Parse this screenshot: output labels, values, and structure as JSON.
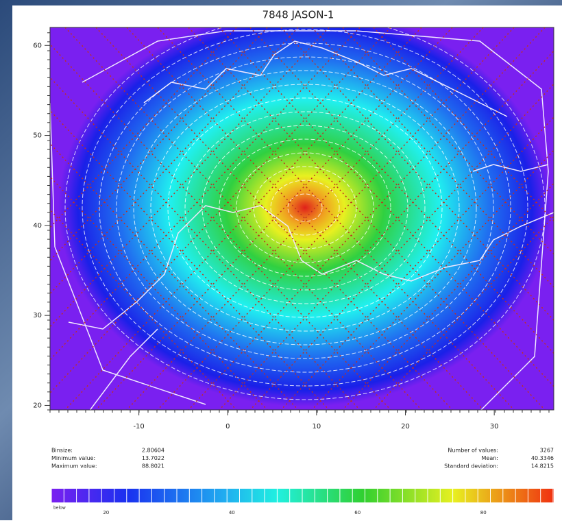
{
  "title": "7848 JASON-1",
  "map": {
    "xlim": [
      -20,
      36.7
    ],
    "ylim": [
      19.5,
      62
    ],
    "xticks": [
      -10,
      0,
      10,
      20,
      30
    ],
    "yticks": [
      20,
      30,
      40,
      50,
      60
    ]
  },
  "stats_left": [
    {
      "label": "Binsize:",
      "value": "2.80604"
    },
    {
      "label": "Minimum value:",
      "value": "13.7022"
    },
    {
      "label": "Maximum value:",
      "value": "88.8021"
    }
  ],
  "stats_right": [
    {
      "label": "Number of values:",
      "value": "3267"
    },
    {
      "label": "Mean:",
      "value": "40.3346"
    },
    {
      "label": "Standard deviation:",
      "value": "14.8215"
    }
  ],
  "colorbar": {
    "below_label": "below",
    "range": [
      11.3,
      91.2
    ],
    "ticks": [
      20,
      40,
      60,
      80
    ]
  }
}
